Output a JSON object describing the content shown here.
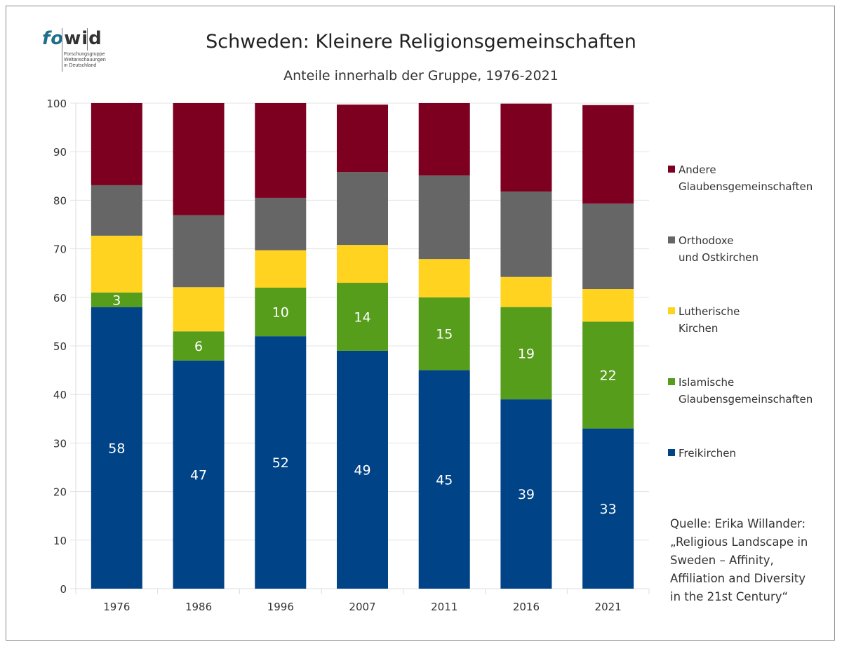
{
  "logo": {
    "brand_a": "fo",
    "brand_b": "wid",
    "subtitle_lines": [
      "Forschungsgruppe",
      "Weltanschauungen",
      "in Deutschland"
    ]
  },
  "chart_data": {
    "type": "bar",
    "stacked": true,
    "title": "Schweden: Kleinere Religionsgemeinschaften",
    "subtitle": "Anteile innerhalb der Gruppe, 1976-2021",
    "xlabel": "",
    "ylabel": "",
    "ylim": [
      0,
      100
    ],
    "yticks": [
      0,
      10,
      20,
      30,
      40,
      50,
      60,
      70,
      80,
      90,
      100
    ],
    "grid": true,
    "legend_position": "right",
    "categories": [
      "1976",
      "1986",
      "1996",
      "2007",
      "2011",
      "2016",
      "2021"
    ],
    "series": [
      {
        "name": "Freikirchen",
        "color": "#014387",
        "values": [
          58,
          47,
          52,
          49,
          45,
          39,
          33
        ],
        "labels_shown": true
      },
      {
        "name": "Islamische Glaubensgemeinschaften",
        "color": "#579d1c",
        "values": [
          3,
          6,
          10,
          14,
          15,
          19,
          22
        ],
        "labels_shown": true
      },
      {
        "name": "Lutherische Kirchen",
        "color": "#ffd320",
        "values": [
          11.7,
          9.1,
          7.7,
          7.8,
          7.9,
          6.2,
          6.7
        ],
        "labels_shown": false
      },
      {
        "name": "Orthodoxe und Ostkirchen",
        "color": "#666666",
        "values": [
          10.4,
          14.8,
          10.8,
          15.0,
          17.2,
          17.6,
          17.6
        ],
        "labels_shown": false
      },
      {
        "name": "Andere Glaubensgemeinschaften",
        "color": "#7e0021",
        "values": [
          16.9,
          23.1,
          19.5,
          13.9,
          14.9,
          18.1,
          20.3
        ],
        "labels_shown": false
      }
    ]
  },
  "legend": [
    {
      "label": "Andere\nGlaubensgemeinschaften",
      "color": "#7e0021"
    },
    {
      "label": "Orthodoxe\nund Ostkirchen",
      "color": "#666666"
    },
    {
      "label": "Lutherische\nKirchen",
      "color": "#ffd320"
    },
    {
      "label": "Islamische\nGlaubensgemeinschaften",
      "color": "#579d1c"
    },
    {
      "label": "Freikirchen",
      "color": "#014387"
    }
  ],
  "source": "Quelle: Erika Willander:\n„Religious Landscape in\nSweden – Affinity,\nAffiliation and Diversity\nin the 21st Century“"
}
